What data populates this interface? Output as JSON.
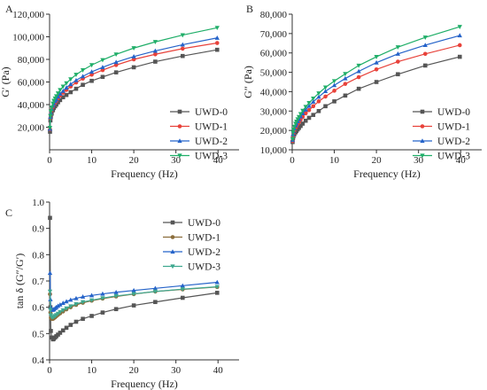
{
  "chart_data": [
    {
      "type": "line",
      "panel_label": "A",
      "xlabel": "Frequency (Hz)",
      "ylabel": "G′ (Pa)",
      "xlim": [
        0,
        45
      ],
      "ylim": [
        0,
        120000
      ],
      "x_ticks": [
        0,
        10,
        20,
        30,
        40
      ],
      "x_tick_labels": [
        "0",
        "10",
        "20",
        "30",
        "40"
      ],
      "y_ticks": [
        20000,
        40000,
        60000,
        80000,
        100000,
        120000
      ],
      "y_tick_labels": [
        "20,000",
        "40,000",
        "60,000",
        "80,000",
        "100,000",
        "120,000"
      ],
      "grid": false,
      "legend": "bottom-right",
      "x": [
        0.1,
        0.2,
        0.3,
        0.5,
        0.8,
        1.0,
        1.3,
        1.6,
        2.0,
        2.5,
        3.2,
        4.0,
        5.0,
        6.3,
        7.9,
        10.0,
        12.6,
        15.8,
        20.0,
        25.1,
        31.6,
        39.8
      ],
      "series": [
        {
          "name": "UWD-0",
          "color": "#555555",
          "marker": "square",
          "values": [
            16000,
            26000,
            29000,
            32000,
            35000,
            37000,
            38500,
            40000,
            42000,
            44000,
            46500,
            48500,
            51000,
            54000,
            57500,
            61000,
            64500,
            68500,
            73000,
            78000,
            83000,
            88500
          ]
        },
        {
          "name": "UWD-1",
          "color": "#e8423a",
          "marker": "circle",
          "values": [
            18000,
            28000,
            31500,
            35000,
            38000,
            40000,
            41500,
            43000,
            45500,
            48000,
            50500,
            53000,
            56000,
            59500,
            63000,
            66500,
            70500,
            75000,
            80000,
            84500,
            89500,
            94500
          ]
        },
        {
          "name": "UWD-2",
          "color": "#2563c9",
          "marker": "triangle-up",
          "values": [
            18500,
            29000,
            32500,
            36000,
            39000,
            41000,
            43000,
            44500,
            47000,
            49500,
            52000,
            55000,
            58000,
            61500,
            65000,
            69000,
            73000,
            77500,
            82500,
            87500,
            93000,
            99000
          ]
        },
        {
          "name": "UWD-3",
          "color": "#1fae68",
          "marker": "triangle-down",
          "values": [
            19500,
            30000,
            34000,
            37500,
            41000,
            43500,
            45500,
            47500,
            50000,
            53000,
            56000,
            59000,
            62500,
            66500,
            70500,
            75000,
            79500,
            84500,
            90000,
            95500,
            101500,
            108000
          ]
        }
      ]
    },
    {
      "type": "line",
      "panel_label": "B",
      "xlabel": "Frequency (Hz)",
      "ylabel": "G″ (Pa)",
      "xlim": [
        0,
        45
      ],
      "ylim": [
        10000,
        80000
      ],
      "x_ticks": [
        0,
        10,
        20,
        30,
        40
      ],
      "x_tick_labels": [
        "0",
        "10",
        "20",
        "30",
        "40"
      ],
      "y_ticks": [
        10000,
        20000,
        30000,
        40000,
        50000,
        60000,
        70000,
        80000
      ],
      "y_tick_labels": [
        "10,000",
        "20,000",
        "30,000",
        "40,000",
        "50,000",
        "60,000",
        "70,000",
        "80,000"
      ],
      "grid": false,
      "legend": "bottom-right",
      "x": [
        0.1,
        0.2,
        0.3,
        0.5,
        0.8,
        1.0,
        1.3,
        1.6,
        2.0,
        2.5,
        3.2,
        4.0,
        5.0,
        6.3,
        7.9,
        10.0,
        12.6,
        15.8,
        20.0,
        25.1,
        31.6,
        39.8
      ],
      "series": [
        {
          "name": "UWD-0",
          "color": "#555555",
          "marker": "square",
          "values": [
            14000,
            16000,
            17000,
            18000,
            19000,
            19700,
            20500,
            21300,
            22300,
            23500,
            25000,
            26500,
            28000,
            30000,
            32500,
            35000,
            38000,
            41500,
            45000,
            49000,
            53500,
            58000
          ]
        },
        {
          "name": "UWD-1",
          "color": "#e8423a",
          "marker": "circle",
          "values": [
            14500,
            17000,
            18500,
            20000,
            21300,
            22200,
            23200,
            24200,
            25500,
            27000,
            28800,
            30500,
            32500,
            35000,
            37500,
            40500,
            44000,
            47500,
            51500,
            55500,
            59500,
            64000
          ]
        },
        {
          "name": "UWD-2",
          "color": "#2563c9",
          "marker": "triangle-up",
          "values": [
            15000,
            18000,
            19500,
            21000,
            22500,
            23500,
            24700,
            25800,
            27200,
            28800,
            30700,
            32600,
            34800,
            37300,
            40200,
            43300,
            46800,
            50500,
            55000,
            59500,
            64000,
            69000
          ]
        },
        {
          "name": "UWD-3",
          "color": "#1fae68",
          "marker": "triangle-down",
          "values": [
            15500,
            19000,
            20500,
            22000,
            23500,
            24600,
            25800,
            27000,
            28500,
            30200,
            32200,
            34200,
            36500,
            39200,
            42200,
            45500,
            49200,
            53500,
            58000,
            63000,
            68000,
            73500
          ]
        }
      ]
    },
    {
      "type": "line",
      "panel_label": "C",
      "xlabel": "Frequency (Hz)",
      "ylabel": "tan δ (G″/G′)",
      "xlim": [
        0,
        45
      ],
      "ylim": [
        0.4,
        1.0
      ],
      "x_ticks": [
        0,
        10,
        20,
        30,
        40
      ],
      "x_tick_labels": [
        "0",
        "10",
        "20",
        "30",
        "40"
      ],
      "y_ticks": [
        0.4,
        0.5,
        0.6,
        0.7,
        0.8,
        0.9,
        1.0
      ],
      "y_tick_labels": [
        "0.4",
        "0.5",
        "0.6",
        "0.7",
        "0.8",
        "0.9",
        "1.0"
      ],
      "grid": false,
      "legend": "top-right",
      "x": [
        0.1,
        0.2,
        0.3,
        0.5,
        0.8,
        1.0,
        1.3,
        1.6,
        2.0,
        2.5,
        3.2,
        4.0,
        5.0,
        6.3,
        7.9,
        10.0,
        12.6,
        15.8,
        20.0,
        25.1,
        31.6,
        39.8
      ],
      "series": [
        {
          "name": "UWD-0",
          "color": "#555555",
          "marker": "square",
          "values": [
            0.94,
            0.6,
            0.51,
            0.485,
            0.478,
            0.48,
            0.485,
            0.49,
            0.496,
            0.503,
            0.512,
            0.522,
            0.533,
            0.545,
            0.556,
            0.567,
            0.58,
            0.593,
            0.607,
            0.62,
            0.636,
            0.655
          ]
        },
        {
          "name": "UWD-1",
          "color": "#8a6d3b",
          "marker": "circle",
          "values": [
            0.65,
            0.58,
            0.56,
            0.556,
            0.556,
            0.558,
            0.562,
            0.566,
            0.571,
            0.577,
            0.584,
            0.592,
            0.6,
            0.609,
            0.617,
            0.625,
            0.633,
            0.641,
            0.65,
            0.66,
            0.668,
            0.677
          ]
        },
        {
          "name": "UWD-2",
          "color": "#2563c9",
          "marker": "triangle-up",
          "values": [
            0.73,
            0.63,
            0.6,
            0.59,
            0.59,
            0.592,
            0.596,
            0.6,
            0.605,
            0.61,
            0.616,
            0.622,
            0.628,
            0.634,
            0.64,
            0.645,
            0.651,
            0.657,
            0.664,
            0.672,
            0.682,
            0.695
          ]
        },
        {
          "name": "UWD-3",
          "color": "#3fa88f",
          "marker": "triangle-down",
          "values": [
            0.66,
            0.59,
            0.57,
            0.563,
            0.562,
            0.564,
            0.567,
            0.571,
            0.576,
            0.582,
            0.589,
            0.596,
            0.604,
            0.612,
            0.62,
            0.627,
            0.635,
            0.643,
            0.651,
            0.66,
            0.669,
            0.678
          ]
        }
      ]
    }
  ]
}
